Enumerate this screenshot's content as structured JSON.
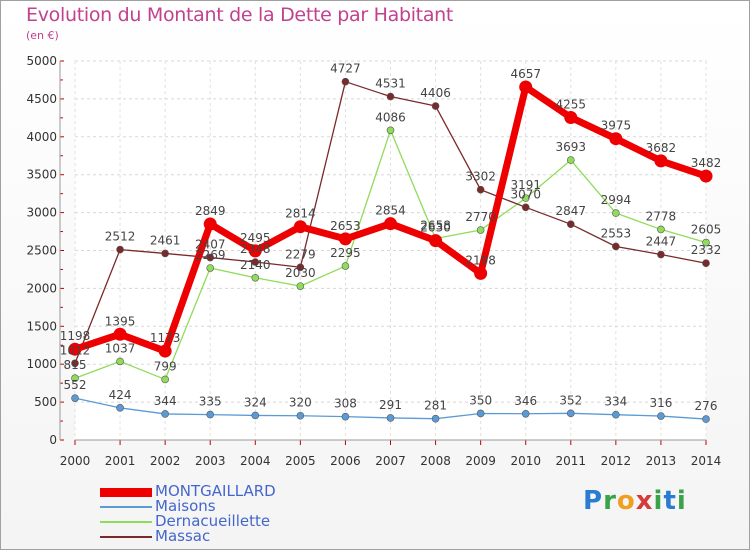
{
  "title": "Evolution du Montant de la Dette par Habitant",
  "subtitle": "(en €)",
  "logo": "Proxiti",
  "chart_data": {
    "type": "line",
    "x": [
      "2000",
      "2001",
      "2002",
      "2003",
      "2004",
      "2005",
      "2006",
      "2007",
      "2008",
      "2009",
      "2010",
      "2011",
      "2012",
      "2013",
      "2014"
    ],
    "ylim": [
      0,
      5000
    ],
    "yticks": [
      0,
      500,
      1000,
      1500,
      2000,
      2500,
      3000,
      3500,
      4000,
      4500,
      5000
    ],
    "grid": true,
    "legend": "bottom-left",
    "series": [
      {
        "name": "MONTGAILLARD",
        "color": "#ee0000",
        "values": [
          1198,
          1395,
          1173,
          2849,
          2495,
          2814,
          2653,
          2854,
          2630,
          2198,
          4657,
          4255,
          3975,
          3682,
          3482
        ]
      },
      {
        "name": "Maisons",
        "color": "#5b9bd5",
        "values": [
          552,
          424,
          344,
          335,
          324,
          320,
          308,
          291,
          281,
          350,
          346,
          352,
          334,
          316,
          276
        ]
      },
      {
        "name": "Dernacueillette",
        "color": "#8fdc5a",
        "values": [
          815,
          1037,
          799,
          2269,
          2140,
          2030,
          2295,
          4086,
          2658,
          2770,
          3191,
          3693,
          2994,
          2778,
          2605
        ]
      },
      {
        "name": "Massac",
        "color": "#7a2a2a",
        "values": [
          1012,
          2512,
          2461,
          2407,
          2348,
          2279,
          4727,
          4531,
          4406,
          3302,
          3070,
          2847,
          2553,
          2447,
          2332
        ]
      }
    ]
  }
}
